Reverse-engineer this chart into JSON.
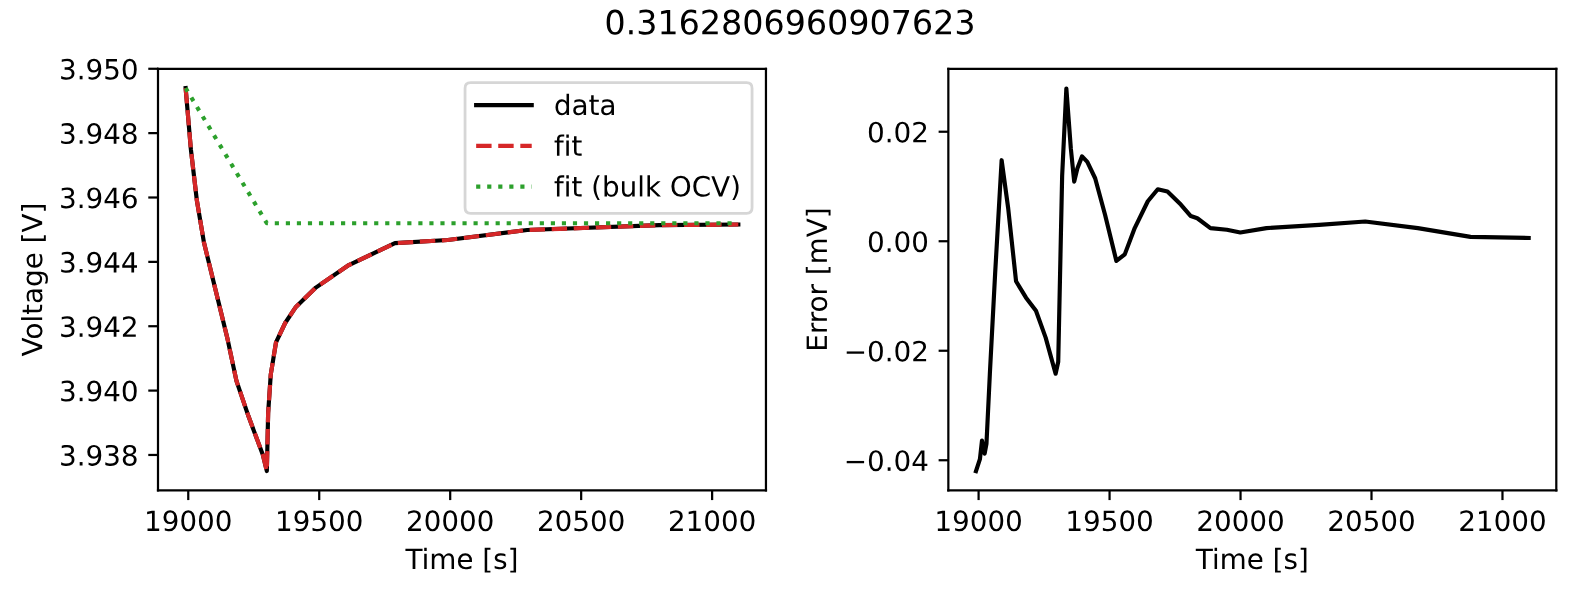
{
  "chart_data": [
    {
      "type": "line",
      "title": "0.3162806960907623",
      "xlabel": "Time [s]",
      "ylabel": "Voltage [V]",
      "xlim": [
        18884.5,
        21205.5
      ],
      "ylim": [
        3.9369,
        3.95
      ],
      "xticks": [
        19000,
        19500,
        20000,
        20500,
        21000
      ],
      "yticks": [
        {
          "value": 3.938,
          "label": "3.938"
        },
        {
          "value": 3.94,
          "label": "3.940"
        },
        {
          "value": 3.942,
          "label": "3.942"
        },
        {
          "value": 3.944,
          "label": "3.944"
        },
        {
          "value": 3.946,
          "label": "3.946"
        },
        {
          "value": 3.948,
          "label": "3.948"
        },
        {
          "value": 3.95,
          "label": "3.950"
        }
      ],
      "grid": false,
      "legend": "top right",
      "series": [
        {
          "name": "data",
          "color": "#000000",
          "line_style": "solid",
          "x": [
            18990,
            19010,
            19033,
            19060,
            19108,
            19150,
            19184,
            19230,
            19285,
            19300,
            19305,
            19315,
            19335,
            19370,
            19411,
            19487,
            19613,
            19789,
            19991,
            20294,
            20798,
            21100
          ],
          "values": [
            3.9494,
            3.9475,
            3.9459,
            3.9446,
            3.943,
            3.9416,
            3.9403,
            3.9392,
            3.938,
            3.9375,
            3.9393,
            3.9405,
            3.9415,
            3.9421,
            3.9426,
            3.9432,
            3.9439,
            3.94458,
            3.94468,
            3.94499,
            3.94514,
            3.94516
          ]
        },
        {
          "name": "fit",
          "color": "#d62728",
          "line_style": "dashed",
          "x": [
            18990,
            19010,
            19033,
            19060,
            19108,
            19150,
            19184,
            19230,
            19285,
            19300,
            19305,
            19315,
            19335,
            19370,
            19411,
            19487,
            19613,
            19789,
            19991,
            20294,
            20798,
            21100
          ],
          "values": [
            3.9494,
            3.9475,
            3.9459,
            3.9446,
            3.943,
            3.9416,
            3.9403,
            3.9392,
            3.938,
            3.9375,
            3.9393,
            3.9405,
            3.9415,
            3.9421,
            3.9426,
            3.9432,
            3.9439,
            3.94458,
            3.94468,
            3.94499,
            3.94514,
            3.94516
          ]
        },
        {
          "name": "fit (bulk OCV)",
          "color": "#2ca02c",
          "line_style": "dotted",
          "x": [
            18990,
            19300,
            21100
          ],
          "values": [
            3.9494,
            3.9452,
            3.9452
          ]
        }
      ]
    },
    {
      "type": "line",
      "xlabel": "Time [s]",
      "ylabel": "Error [mV]",
      "xlim": [
        18884.5,
        21205.5
      ],
      "ylim": [
        -0.0455,
        0.0315
      ],
      "xticks": [
        19000,
        19500,
        20000,
        20500,
        21000
      ],
      "yticks": [
        {
          "value": -0.04,
          "label": "−0.04"
        },
        {
          "value": -0.02,
          "label": "−0.02"
        },
        {
          "value": 0,
          "label": "0.00"
        },
        {
          "value": 0.02,
          "label": "0.02"
        }
      ],
      "grid": false,
      "series": [
        {
          "color": "#000000",
          "line_style": "solid",
          "x": [
            18990,
            19005,
            19013,
            19023,
            19030,
            19043,
            19063,
            19088,
            19113,
            19143,
            19181,
            19219,
            19256,
            19294,
            19304,
            19319,
            19335,
            19352,
            19365,
            19377,
            19395,
            19415,
            19445,
            19483,
            19526,
            19558,
            19596,
            19646,
            19684,
            19721,
            19772,
            19810,
            19835,
            19885,
            19948,
            19999,
            20099,
            20300,
            20476,
            20677,
            20878,
            21100
          ],
          "values": [
            -0.042,
            -0.0398,
            -0.0364,
            -0.0388,
            -0.037,
            -0.0242,
            -0.006,
            0.0148,
            0.006,
            -0.0073,
            -0.0103,
            -0.0127,
            -0.0176,
            -0.0242,
            -0.022,
            0.012,
            0.0279,
            0.017,
            0.0109,
            0.0133,
            0.0155,
            0.0145,
            0.0115,
            0.0048,
            -0.0036,
            -0.0024,
            0.0024,
            0.0073,
            0.0095,
            0.0091,
            0.0067,
            0.0046,
            0.0042,
            0.0024,
            0.0021,
            0.0016,
            0.0024,
            0.003,
            0.0036,
            0.0024,
            0.0008,
            0.0006
          ]
        }
      ]
    }
  ]
}
